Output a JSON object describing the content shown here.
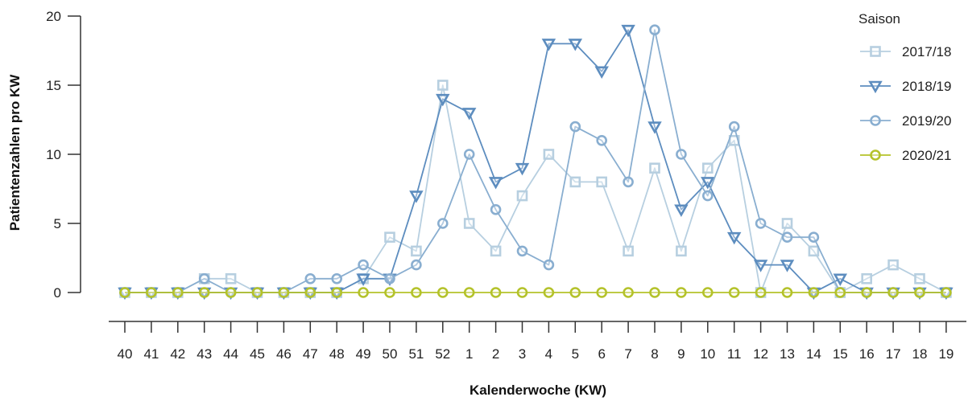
{
  "chart_data": {
    "type": "line",
    "xlabel": "Kalenderwoche (KW)",
    "ylabel": "Patientenzahlen pro KW",
    "ylim": [
      0,
      20
    ],
    "yticks": [
      0,
      5,
      10,
      15,
      20
    ],
    "categories": [
      "40",
      "41",
      "42",
      "43",
      "44",
      "45",
      "46",
      "47",
      "48",
      "49",
      "50",
      "51",
      "52",
      "1",
      "2",
      "3",
      "4",
      "5",
      "6",
      "7",
      "8",
      "9",
      "10",
      "11",
      "12",
      "13",
      "14",
      "15",
      "16",
      "17",
      "18",
      "19"
    ],
    "legend_title": "Saison",
    "legend_position": "top-right",
    "grid": false,
    "series": [
      {
        "name": "2017/18",
        "color": "#b7cfe0",
        "marker": "square",
        "values": [
          0,
          0,
          0,
          1,
          1,
          0,
          0,
          0,
          0,
          1,
          4,
          3,
          15,
          5,
          3,
          7,
          10,
          8,
          8,
          3,
          9,
          3,
          9,
          11,
          0,
          5,
          3,
          0,
          1,
          2,
          1,
          0
        ]
      },
      {
        "name": "2018/19",
        "color": "#5d8dbf",
        "marker": "triangle-down",
        "values": [
          0,
          0,
          0,
          0,
          0,
          0,
          0,
          0,
          0,
          1,
          1,
          7,
          14,
          13,
          8,
          9,
          18,
          18,
          16,
          19,
          12,
          6,
          8,
          4,
          2,
          2,
          0,
          1,
          0,
          0,
          0,
          0
        ]
      },
      {
        "name": "2019/20",
        "color": "#89aed0",
        "marker": "circle",
        "values": [
          0,
          0,
          0,
          1,
          0,
          0,
          0,
          1,
          1,
          2,
          1,
          2,
          5,
          10,
          6,
          3,
          2,
          12,
          11,
          8,
          19,
          10,
          7,
          12,
          5,
          4,
          4,
          0,
          0,
          0,
          0,
          0
        ]
      },
      {
        "name": "2020/21",
        "color": "#b4c22a",
        "marker": "circle",
        "values": [
          0,
          0,
          0,
          0,
          0,
          0,
          0,
          0,
          0,
          0,
          0,
          0,
          0,
          0,
          0,
          0,
          0,
          0,
          0,
          0,
          0,
          0,
          0,
          0,
          0,
          0,
          0,
          0,
          0,
          0,
          0,
          0
        ]
      }
    ]
  }
}
